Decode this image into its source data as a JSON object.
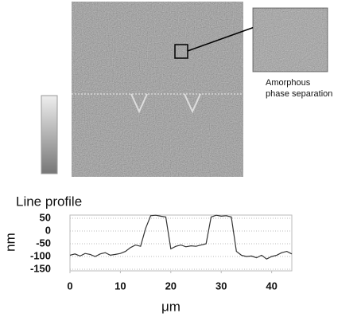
{
  "chart_data": {
    "type": "line",
    "title": "Line profile",
    "annotation": [
      "Amorphous",
      "phase separation"
    ],
    "x": [
      0,
      1,
      2,
      3,
      4,
      5,
      6,
      7,
      8,
      9,
      10,
      11,
      12,
      13,
      14,
      15,
      16,
      17,
      18,
      19,
      20,
      21,
      22,
      23,
      24,
      25,
      26,
      27,
      28,
      29,
      30,
      31,
      32,
      33,
      34,
      35,
      36,
      37,
      38,
      39,
      40,
      41,
      42,
      43,
      44
    ],
    "series": [
      {
        "color": "#333333",
        "values": [
          -95,
          -90,
          -98,
          -88,
          -92,
          -100,
          -90,
          -85,
          -95,
          -92,
          -88,
          -80,
          -65,
          -55,
          -60,
          10,
          60,
          62,
          58,
          55,
          -70,
          -60,
          -55,
          -62,
          -58,
          -60,
          -55,
          -50,
          55,
          62,
          58,
          60,
          55,
          -80,
          -95,
          -100,
          -98,
          -105,
          -95,
          -110,
          -100,
          -95,
          -85,
          -80,
          -90
        ]
      }
    ],
    "xlim": [
      0,
      44
    ],
    "ylim": [
      -150,
      50
    ],
    "xticks": [
      0,
      10,
      20,
      30,
      40
    ],
    "yticks": [
      50,
      0,
      -50,
      -100,
      -150
    ],
    "xlabel": "μm",
    "ylabel": "nm",
    "grid": true
  }
}
